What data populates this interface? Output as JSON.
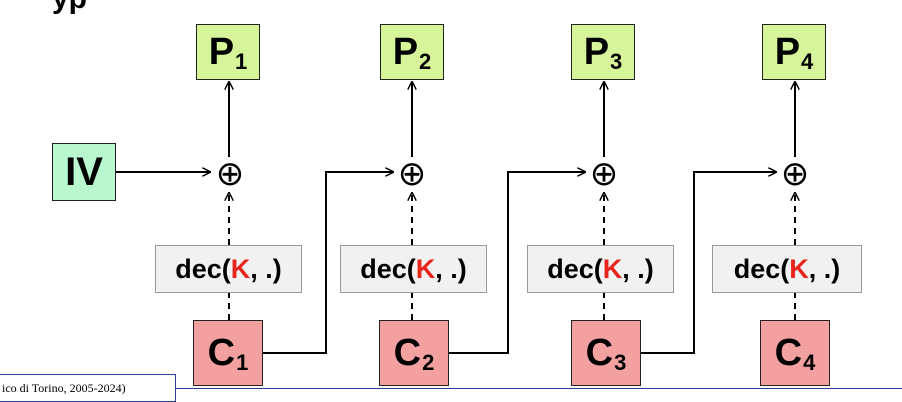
{
  "header": {
    "title_fragment": "yp"
  },
  "iv": {
    "label": "IV"
  },
  "blocks": [
    {
      "plain": "P",
      "cipher": "C",
      "index": "1"
    },
    {
      "plain": "P",
      "cipher": "C",
      "index": "2"
    },
    {
      "plain": "P",
      "cipher": "C",
      "index": "3"
    },
    {
      "plain": "P",
      "cipher": "C",
      "index": "4"
    }
  ],
  "decrypt": {
    "prefix": "dec(",
    "key": "K",
    "suffix": ", .)"
  },
  "xor_symbol": "⊕",
  "footer": {
    "text": "ico di Torino, 2005-2024)"
  },
  "colors": {
    "plaintext": "#d6f59a",
    "ciphertext": "#f2a0a0",
    "iv": "#b9f7cf",
    "decrypt_box": "#f1f1f1",
    "key": "#e8251c",
    "footer_border": "#2c3f9c"
  }
}
